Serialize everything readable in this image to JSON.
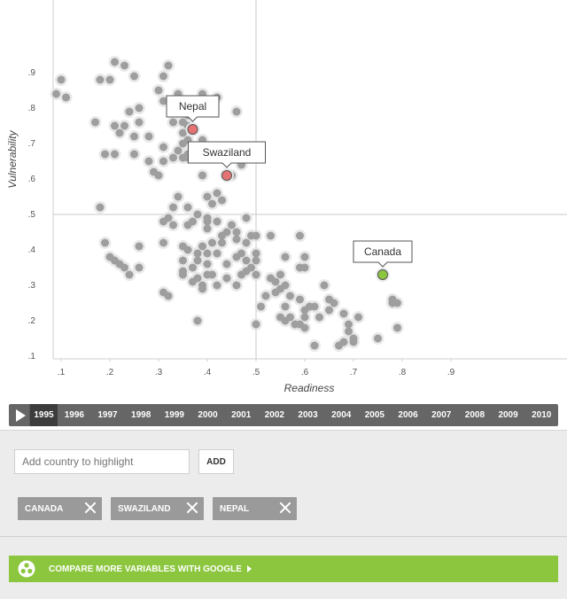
{
  "chart_data": {
    "type": "scatter",
    "xlabel": "Readiness",
    "ylabel": "Vulnerability",
    "xlim": [
      0.0,
      1.05
    ],
    "ylim": [
      0.0,
      1.0
    ],
    "x_ticks": [
      ".1",
      ".2",
      ".3",
      ".4",
      ".5",
      ".6",
      ".7",
      ".8",
      ".9"
    ],
    "y_ticks": [
      ".1",
      ".2",
      ".3",
      ".4",
      ".5",
      ".6",
      ".7",
      ".8",
      ".9"
    ],
    "crosshair": {
      "x": 0.5,
      "y": 0.5
    },
    "grid": false,
    "highlighted": [
      {
        "name": "Nepal",
        "x": 0.37,
        "y": 0.74,
        "color": "#e57373"
      },
      {
        "name": "Swaziland",
        "x": 0.44,
        "y": 0.61,
        "color": "#e57373"
      },
      {
        "name": "Canada",
        "x": 0.76,
        "y": 0.33,
        "color": "#8cc63f"
      }
    ],
    "points": [
      [
        0.21,
        0.93
      ],
      [
        0.23,
        0.92
      ],
      [
        0.32,
        0.92
      ],
      [
        0.31,
        0.89
      ],
      [
        0.25,
        0.89
      ],
      [
        0.1,
        0.88
      ],
      [
        0.18,
        0.88
      ],
      [
        0.2,
        0.88
      ],
      [
        0.09,
        0.84
      ],
      [
        0.11,
        0.83
      ],
      [
        0.3,
        0.85
      ],
      [
        0.34,
        0.84
      ],
      [
        0.39,
        0.84
      ],
      [
        0.42,
        0.83
      ],
      [
        0.31,
        0.82
      ],
      [
        0.33,
        0.81
      ],
      [
        0.37,
        0.8
      ],
      [
        0.41,
        0.79
      ],
      [
        0.46,
        0.79
      ],
      [
        0.24,
        0.79
      ],
      [
        0.26,
        0.8
      ],
      [
        0.34,
        0.79
      ],
      [
        0.36,
        0.78
      ],
      [
        0.17,
        0.76
      ],
      [
        0.21,
        0.75
      ],
      [
        0.23,
        0.75
      ],
      [
        0.26,
        0.76
      ],
      [
        0.33,
        0.76
      ],
      [
        0.35,
        0.76
      ],
      [
        0.36,
        0.75
      ],
      [
        0.22,
        0.73
      ],
      [
        0.25,
        0.72
      ],
      [
        0.28,
        0.72
      ],
      [
        0.35,
        0.73
      ],
      [
        0.36,
        0.71
      ],
      [
        0.39,
        0.71
      ],
      [
        0.31,
        0.69
      ],
      [
        0.35,
        0.7
      ],
      [
        0.37,
        0.69
      ],
      [
        0.34,
        0.68
      ],
      [
        0.38,
        0.68
      ],
      [
        0.36,
        0.67
      ],
      [
        0.4,
        0.67
      ],
      [
        0.19,
        0.67
      ],
      [
        0.21,
        0.67
      ],
      [
        0.25,
        0.67
      ],
      [
        0.33,
        0.66
      ],
      [
        0.35,
        0.66
      ],
      [
        0.36,
        0.66
      ],
      [
        0.39,
        0.66
      ],
      [
        0.43,
        0.66
      ],
      [
        0.28,
        0.65
      ],
      [
        0.31,
        0.65
      ],
      [
        0.47,
        0.64
      ],
      [
        0.29,
        0.62
      ],
      [
        0.3,
        0.61
      ],
      [
        0.39,
        0.61
      ],
      [
        0.45,
        0.61
      ],
      [
        0.34,
        0.55
      ],
      [
        0.4,
        0.55
      ],
      [
        0.42,
        0.56
      ],
      [
        0.43,
        0.54
      ],
      [
        0.41,
        0.53
      ],
      [
        0.18,
        0.52
      ],
      [
        0.33,
        0.52
      ],
      [
        0.36,
        0.52
      ],
      [
        0.38,
        0.5
      ],
      [
        0.4,
        0.49
      ],
      [
        0.48,
        0.49
      ],
      [
        0.31,
        0.48
      ],
      [
        0.32,
        0.49
      ],
      [
        0.33,
        0.47
      ],
      [
        0.36,
        0.47
      ],
      [
        0.37,
        0.48
      ],
      [
        0.4,
        0.48
      ],
      [
        0.42,
        0.48
      ],
      [
        0.45,
        0.47
      ],
      [
        0.4,
        0.46
      ],
      [
        0.44,
        0.45
      ],
      [
        0.46,
        0.45
      ],
      [
        0.43,
        0.44
      ],
      [
        0.49,
        0.44
      ],
      [
        0.5,
        0.44
      ],
      [
        0.53,
        0.44
      ],
      [
        0.59,
        0.44
      ],
      [
        0.43,
        0.42
      ],
      [
        0.46,
        0.43
      ],
      [
        0.48,
        0.42
      ],
      [
        0.19,
        0.42
      ],
      [
        0.35,
        0.41
      ],
      [
        0.39,
        0.41
      ],
      [
        0.41,
        0.42
      ],
      [
        0.26,
        0.41
      ],
      [
        0.31,
        0.42
      ],
      [
        0.36,
        0.4
      ],
      [
        0.38,
        0.39
      ],
      [
        0.4,
        0.39
      ],
      [
        0.42,
        0.39
      ],
      [
        0.47,
        0.39
      ],
      [
        0.5,
        0.39
      ],
      [
        0.2,
        0.38
      ],
      [
        0.21,
        0.37
      ],
      [
        0.22,
        0.36
      ],
      [
        0.35,
        0.37
      ],
      [
        0.38,
        0.37
      ],
      [
        0.46,
        0.38
      ],
      [
        0.48,
        0.37
      ],
      [
        0.5,
        0.37
      ],
      [
        0.56,
        0.38
      ],
      [
        0.6,
        0.38
      ],
      [
        0.37,
        0.35
      ],
      [
        0.4,
        0.36
      ],
      [
        0.44,
        0.36
      ],
      [
        0.49,
        0.35
      ],
      [
        0.23,
        0.35
      ],
      [
        0.26,
        0.35
      ],
      [
        0.35,
        0.34
      ],
      [
        0.48,
        0.34
      ],
      [
        0.59,
        0.35
      ],
      [
        0.6,
        0.35
      ],
      [
        0.24,
        0.33
      ],
      [
        0.35,
        0.33
      ],
      [
        0.38,
        0.32
      ],
      [
        0.4,
        0.33
      ],
      [
        0.41,
        0.33
      ],
      [
        0.44,
        0.32
      ],
      [
        0.47,
        0.33
      ],
      [
        0.5,
        0.33
      ],
      [
        0.55,
        0.33
      ],
      [
        0.37,
        0.31
      ],
      [
        0.39,
        0.3
      ],
      [
        0.42,
        0.3
      ],
      [
        0.46,
        0.3
      ],
      [
        0.53,
        0.32
      ],
      [
        0.54,
        0.31
      ],
      [
        0.56,
        0.3
      ],
      [
        0.64,
        0.3
      ],
      [
        0.55,
        0.29
      ],
      [
        0.39,
        0.29
      ],
      [
        0.54,
        0.28
      ],
      [
        0.31,
        0.28
      ],
      [
        0.32,
        0.27
      ],
      [
        0.52,
        0.27
      ],
      [
        0.57,
        0.27
      ],
      [
        0.59,
        0.26
      ],
      [
        0.65,
        0.26
      ],
      [
        0.66,
        0.25
      ],
      [
        0.78,
        0.26
      ],
      [
        0.78,
        0.25
      ],
      [
        0.79,
        0.25
      ],
      [
        0.51,
        0.24
      ],
      [
        0.56,
        0.24
      ],
      [
        0.61,
        0.24
      ],
      [
        0.62,
        0.24
      ],
      [
        0.6,
        0.23
      ],
      [
        0.65,
        0.23
      ],
      [
        0.68,
        0.22
      ],
      [
        0.55,
        0.21
      ],
      [
        0.57,
        0.21
      ],
      [
        0.6,
        0.21
      ],
      [
        0.63,
        0.21
      ],
      [
        0.71,
        0.21
      ],
      [
        0.56,
        0.2
      ],
      [
        0.69,
        0.19
      ],
      [
        0.58,
        0.19
      ],
      [
        0.59,
        0.19
      ],
      [
        0.6,
        0.18
      ],
      [
        0.5,
        0.19
      ],
      [
        0.38,
        0.2
      ],
      [
        0.79,
        0.18
      ],
      [
        0.69,
        0.17
      ],
      [
        0.7,
        0.15
      ],
      [
        0.75,
        0.15
      ],
      [
        0.68,
        0.14
      ],
      [
        0.7,
        0.14
      ],
      [
        0.62,
        0.13
      ],
      [
        0.67,
        0.13
      ]
    ]
  },
  "timeline": {
    "years": [
      "1995",
      "1996",
      "1997",
      "1998",
      "1999",
      "2000",
      "2001",
      "2002",
      "2003",
      "2004",
      "2005",
      "2006",
      "2007",
      "2008",
      "2009",
      "2010"
    ],
    "active_year": "1995"
  },
  "add_country": {
    "placeholder": "Add country to highlight",
    "button_label": "ADD"
  },
  "chips": [
    {
      "label": "CANADA"
    },
    {
      "label": "SWAZILAND"
    },
    {
      "label": "NEPAL"
    }
  ],
  "compare": {
    "label": "COMPARE MORE VARIABLES WITH GOOGLE",
    "color": "#8cc63f"
  }
}
